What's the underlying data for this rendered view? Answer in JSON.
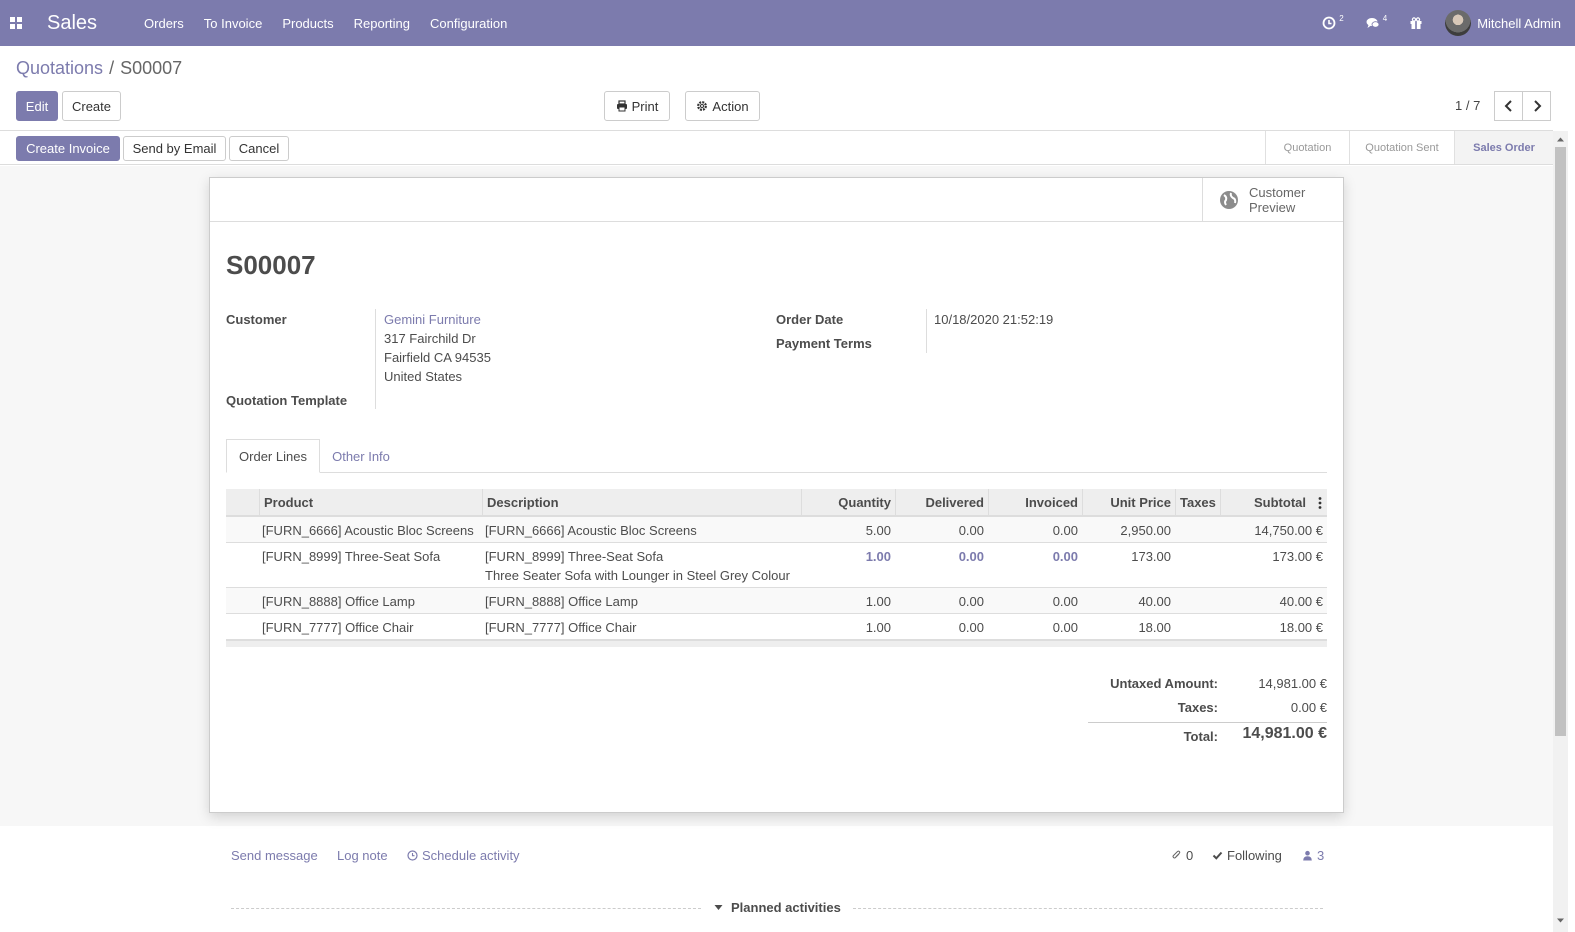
{
  "navbar": {
    "brand": "Sales",
    "menu": [
      "Orders",
      "To Invoice",
      "Products",
      "Reporting",
      "Configuration"
    ],
    "activity_count": "2",
    "message_count": "4",
    "user_name": "Mitchell Admin"
  },
  "breadcrumb": {
    "parent": "Quotations",
    "separator": "/",
    "current": "S00007"
  },
  "control": {
    "edit_label": "Edit",
    "create_label": "Create",
    "print_label": "Print",
    "action_label": "Action",
    "pager": "1 / 7"
  },
  "statusbar": {
    "create_invoice_label": "Create Invoice",
    "send_email_label": "Send by Email",
    "cancel_label": "Cancel",
    "stages": [
      "Quotation",
      "Quotation Sent",
      "Sales Order"
    ],
    "current_stage": "Sales Order"
  },
  "sheet": {
    "preview_label_1": "Customer",
    "preview_label_2": "Preview",
    "order_name": "S00007",
    "customer_label": "Customer",
    "customer_name": "Gemini Furniture",
    "address_line1": "317 Fairchild Dr",
    "address_line2": "Fairfield CA 94535",
    "address_line3": "United States",
    "template_label": "Quotation Template",
    "order_date_label": "Order Date",
    "order_date": "10/18/2020 21:52:19",
    "payment_terms_label": "Payment Terms"
  },
  "tabs": [
    "Order Lines",
    "Other Info"
  ],
  "table": {
    "headers": [
      "Product",
      "Description",
      "Quantity",
      "Delivered",
      "Invoiced",
      "Unit Price",
      "Taxes",
      "Subtotal"
    ],
    "rows": [
      {
        "product": "[FURN_6666] Acoustic Bloc Screens",
        "description": "[FURN_6666] Acoustic Bloc Screens",
        "description2": "",
        "quantity": "5.00",
        "delivered": "0.00",
        "invoiced": "0.00",
        "unit_price": "2,950.00",
        "taxes": "",
        "subtotal": "14,750.00 €"
      },
      {
        "product": "[FURN_8999] Three-Seat Sofa",
        "description": "[FURN_8999] Three-Seat Sofa",
        "description2": "Three Seater Sofa with Lounger in Steel Grey Colour",
        "quantity": "1.00",
        "delivered": "0.00",
        "invoiced": "0.00",
        "unit_price": "173.00",
        "taxes": "",
        "subtotal": "173.00 €"
      },
      {
        "product": "[FURN_8888] Office Lamp",
        "description": "[FURN_8888] Office Lamp",
        "description2": "",
        "quantity": "1.00",
        "delivered": "0.00",
        "invoiced": "0.00",
        "unit_price": "40.00",
        "taxes": "",
        "subtotal": "40.00 €"
      },
      {
        "product": "[FURN_7777] Office Chair",
        "description": "[FURN_7777] Office Chair",
        "description2": "",
        "quantity": "1.00",
        "delivered": "0.00",
        "invoiced": "0.00",
        "unit_price": "18.00",
        "taxes": "",
        "subtotal": "18.00 €"
      }
    ]
  },
  "totals": {
    "untaxed_label": "Untaxed Amount:",
    "untaxed_value": "14,981.00 €",
    "taxes_label": "Taxes:",
    "taxes_value": "0.00 €",
    "total_label": "Total:",
    "total_value": "14,981.00 €"
  },
  "chatter": {
    "send_message": "Send message",
    "log_note": "Log note",
    "schedule_activity": "Schedule activity",
    "attachments": "0",
    "following": "Following",
    "followers": "3",
    "planned_activities": "Planned activities"
  },
  "colors": {
    "brand": "#7c7bad"
  }
}
